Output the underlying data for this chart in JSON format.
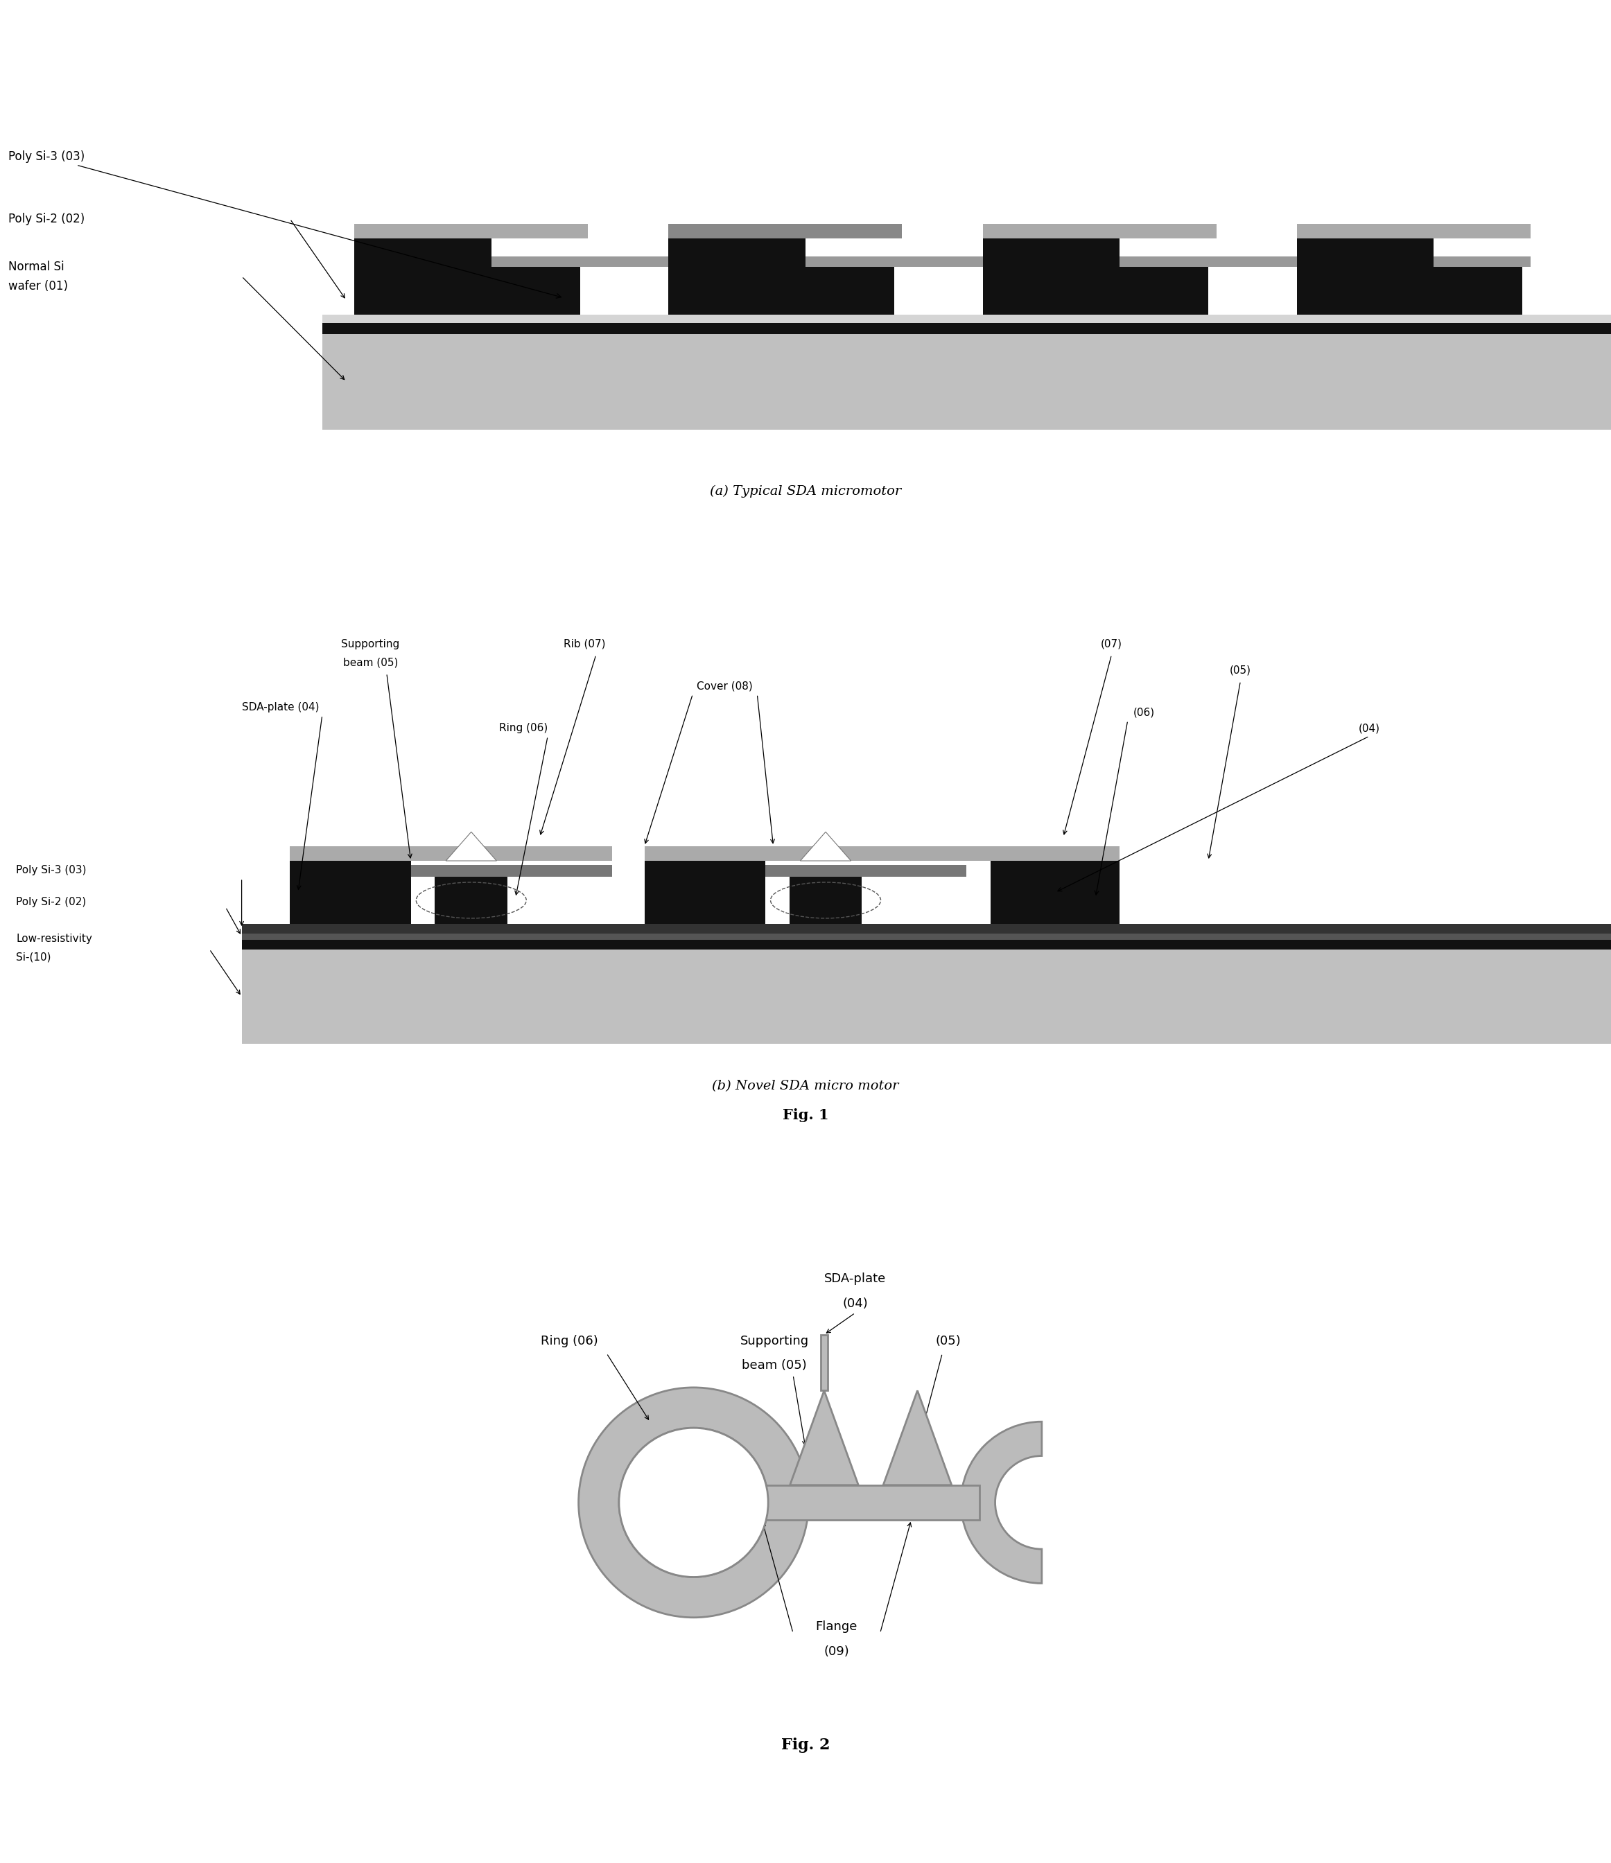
{
  "bg": "#ffffff",
  "dark": "#111111",
  "blk": "#000000",
  "dgray": "#444444",
  "mgray": "#777777",
  "lgray": "#aaaaaa",
  "vlgray": "#cccccc",
  "substrate": "#c0c0c0",
  "substrate2": "#b8b8b8",
  "fig1a_caption": "(a) Typical SDA micromotor",
  "fig1b_caption": "(b) Novel SDA micro motor",
  "fig1_label": "Fig. 1",
  "fig2_label": "Fig. 2"
}
